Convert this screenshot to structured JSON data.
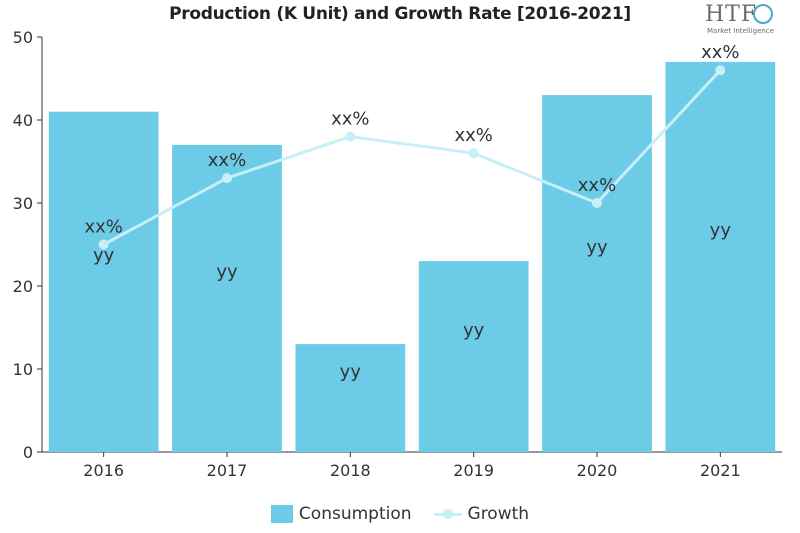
{
  "chart_data": {
    "type": "bar",
    "title": "Production (K Unit) and Growth Rate [2016-2021]",
    "categories": [
      "2016",
      "2017",
      "2018",
      "2019",
      "2020",
      "2021"
    ],
    "series": [
      {
        "name": "Consumption",
        "type": "bar",
        "values": [
          41,
          37,
          13,
          23,
          43,
          47
        ],
        "labels": [
          "yy",
          "yy",
          "yy",
          "yy",
          "yy",
          "yy"
        ],
        "color": "#6ccbe6"
      },
      {
        "name": "Growth",
        "type": "line",
        "values": [
          25,
          33,
          38,
          36,
          30,
          46
        ],
        "labels": [
          "xx%",
          "xx%",
          "xx%",
          "xx%",
          "xx%",
          "xx%"
        ],
        "color": "#c8eef8"
      }
    ],
    "ylim": [
      0,
      50
    ],
    "yticks": [
      0,
      10,
      20,
      30,
      40,
      50
    ],
    "grid": false,
    "legend_position": "bottom"
  },
  "logo": {
    "text": "HTF",
    "subtext": "Market Intelligence"
  }
}
